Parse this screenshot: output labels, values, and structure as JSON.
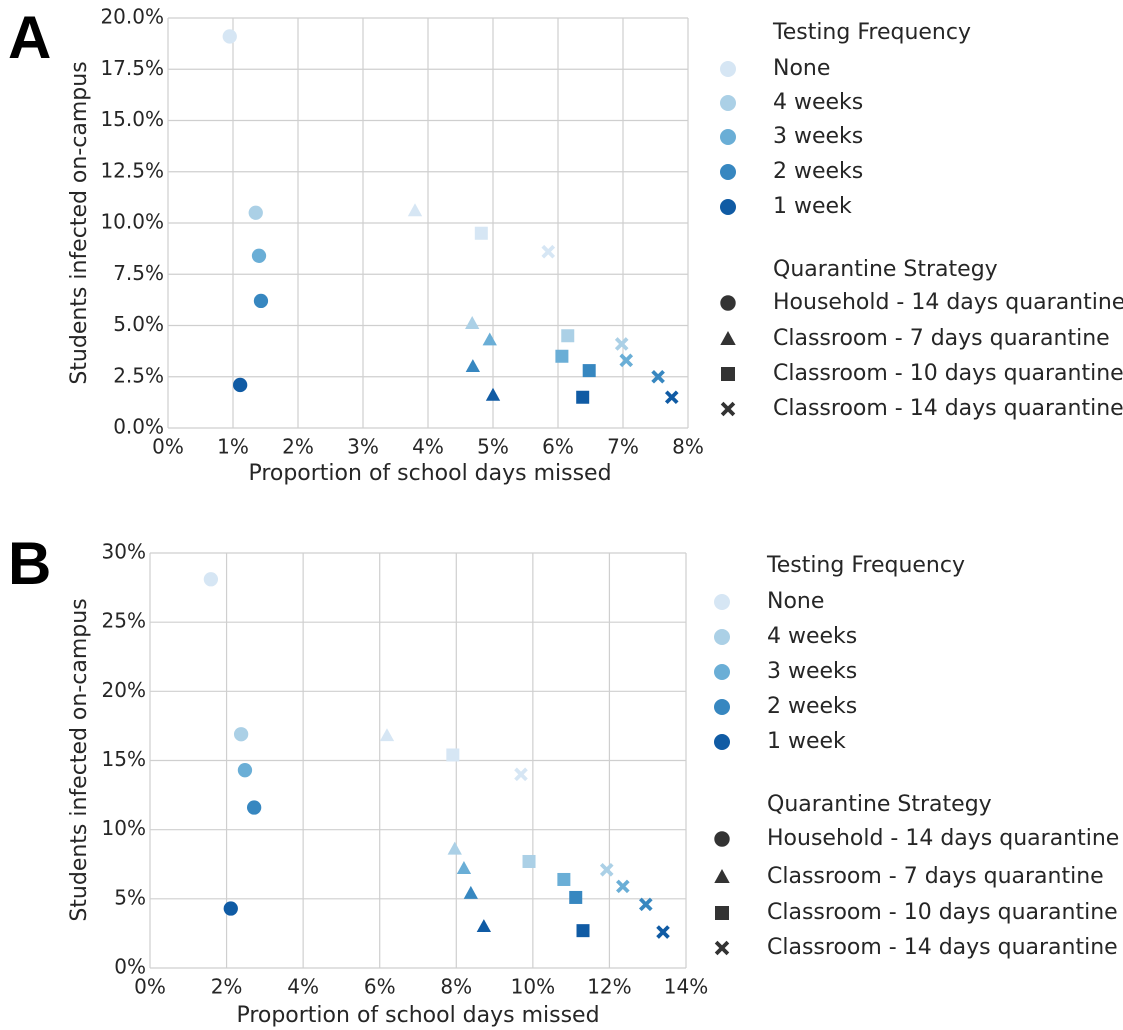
{
  "chart_data": [
    {
      "type": "scatter",
      "panel_label": "A",
      "xlabel": "Proportion of school days missed",
      "ylabel": "Students infected on-campus",
      "xlim": [
        0,
        8
      ],
      "xticks": [
        {
          "value": 0,
          "label": "0%"
        },
        {
          "value": 1,
          "label": "1%"
        },
        {
          "value": 2,
          "label": "2%"
        },
        {
          "value": 3,
          "label": "3%"
        },
        {
          "value": 4,
          "label": "4%"
        },
        {
          "value": 5,
          "label": "5%"
        },
        {
          "value": 6,
          "label": "6%"
        },
        {
          "value": 7,
          "label": "7%"
        },
        {
          "value": 8,
          "label": "8%"
        }
      ],
      "ylim": [
        0,
        20
      ],
      "yticks": [
        {
          "value": 0,
          "label": "0.0%"
        },
        {
          "value": 2.5,
          "label": "2.5%"
        },
        {
          "value": 5,
          "label": "5.0%"
        },
        {
          "value": 7.5,
          "label": "7.5%"
        },
        {
          "value": 10,
          "label": "10.0%"
        },
        {
          "value": 12.5,
          "label": "12.5%"
        },
        {
          "value": 15,
          "label": "15.0%"
        },
        {
          "value": 17.5,
          "label": "17.5%"
        },
        {
          "value": 20,
          "label": "20.0%"
        }
      ],
      "grid": true,
      "color_legend": {
        "title": "Testing Frequency",
        "names": [
          "None",
          "4 weeks",
          "3 weeks",
          "2 weeks",
          "1 week"
        ],
        "colors": [
          "#d6e6f4",
          "#abd0e6",
          "#6aaed6",
          "#3787c0",
          "#105ba4"
        ]
      },
      "marker_legend": {
        "title": "Quarantine Strategy"
      },
      "series": [
        {
          "name": "Household - 14 days quarantine",
          "marker": "circle",
          "x": [
            0.95,
            1.35,
            1.4,
            1.43,
            1.11
          ],
          "values": [
            19.1,
            10.5,
            8.4,
            6.2,
            2.1
          ]
        },
        {
          "name": "Classroom - 7 days quarantine",
          "marker": "triangle",
          "x": [
            3.8,
            4.68,
            4.95,
            4.69,
            5.0
          ],
          "values": [
            10.6,
            5.1,
            4.3,
            3.0,
            1.6
          ]
        },
        {
          "name": "Classroom - 10 days quarantine",
          "marker": "square",
          "x": [
            4.82,
            6.15,
            6.06,
            6.48,
            6.38
          ],
          "values": [
            9.5,
            4.5,
            3.5,
            2.8,
            1.5
          ]
        },
        {
          "name": "Classroom - 14 days quarantine",
          "marker": "x",
          "x": [
            5.85,
            6.98,
            7.05,
            7.54,
            7.75
          ],
          "values": [
            8.6,
            4.1,
            3.3,
            2.5,
            1.5
          ]
        }
      ]
    },
    {
      "type": "scatter",
      "panel_label": "B",
      "xlabel": "Proportion of school days missed",
      "ylabel": "Students infected on-campus",
      "xlim": [
        0,
        14
      ],
      "xticks": [
        {
          "value": 0,
          "label": "0%"
        },
        {
          "value": 2,
          "label": "2%"
        },
        {
          "value": 4,
          "label": "4%"
        },
        {
          "value": 6,
          "label": "6%"
        },
        {
          "value": 8,
          "label": "8%"
        },
        {
          "value": 10,
          "label": "10%"
        },
        {
          "value": 12,
          "label": "12%"
        },
        {
          "value": 14,
          "label": "14%"
        }
      ],
      "ylim": [
        0,
        30
      ],
      "yticks": [
        {
          "value": 0,
          "label": "0%"
        },
        {
          "value": 5,
          "label": "5%"
        },
        {
          "value": 10,
          "label": "10%"
        },
        {
          "value": 15,
          "label": "15%"
        },
        {
          "value": 20,
          "label": "20%"
        },
        {
          "value": 25,
          "label": "25%"
        },
        {
          "value": 30,
          "label": "30%"
        }
      ],
      "grid": true,
      "color_legend": {
        "title": "Testing Frequency",
        "names": [
          "None",
          "4 weeks",
          "3 weeks",
          "2 weeks",
          "1 week"
        ],
        "colors": [
          "#d6e6f4",
          "#abd0e6",
          "#6aaed6",
          "#3787c0",
          "#105ba4"
        ]
      },
      "marker_legend": {
        "title": "Quarantine Strategy"
      },
      "series": [
        {
          "name": "Household - 14 days quarantine",
          "marker": "circle",
          "x": [
            1.59,
            2.38,
            2.48,
            2.72,
            2.11
          ],
          "values": [
            28.1,
            16.9,
            14.3,
            11.6,
            4.3
          ]
        },
        {
          "name": "Classroom - 7 days quarantine",
          "marker": "triangle",
          "x": [
            6.19,
            7.96,
            8.2,
            8.38,
            8.72
          ],
          "values": [
            16.8,
            8.6,
            7.2,
            5.4,
            3.0
          ]
        },
        {
          "name": "Classroom - 10 days quarantine",
          "marker": "square",
          "x": [
            7.91,
            9.9,
            10.81,
            11.12,
            11.31
          ],
          "values": [
            15.4,
            7.7,
            6.4,
            5.1,
            2.7
          ]
        },
        {
          "name": "Classroom - 14 days quarantine",
          "marker": "x",
          "x": [
            9.69,
            11.93,
            12.35,
            12.95,
            13.4
          ],
          "values": [
            14.0,
            7.1,
            5.9,
            4.6,
            2.6
          ]
        }
      ]
    }
  ]
}
